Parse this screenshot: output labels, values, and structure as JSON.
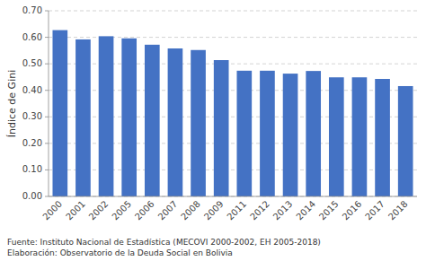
{
  "chart_data": {
    "type": "bar",
    "ylabel": "Índice de Gini",
    "categories": [
      "2000",
      "2001",
      "2002",
      "2005",
      "2006",
      "2007",
      "2008",
      "2009",
      "2011",
      "2012",
      "2013",
      "2014",
      "2015",
      "2016",
      "2017",
      "2018"
    ],
    "values": [
      0.627,
      0.592,
      0.604,
      0.596,
      0.572,
      0.558,
      0.552,
      0.514,
      0.474,
      0.474,
      0.463,
      0.473,
      0.449,
      0.449,
      0.443,
      0.416
    ],
    "color": "#4472C4",
    "ylim": [
      0.0,
      0.7
    ],
    "yticks": [
      {
        "value": 0.0,
        "label": "0.00"
      },
      {
        "value": 0.1,
        "label": "0.10"
      },
      {
        "value": 0.2,
        "label": "0.20"
      },
      {
        "value": 0.3,
        "label": "0.30"
      },
      {
        "value": 0.4,
        "label": "0.40"
      },
      {
        "value": 0.5,
        "label": "0.50"
      },
      {
        "value": 0.6,
        "label": "0.60"
      },
      {
        "value": 0.7,
        "label": "0.70"
      }
    ],
    "grid": true,
    "annotations": [
      "Fuente: Instituto Nacional de Estadística (MECOVI 2000-2002, EH 2005-2018)",
      "Elaboración: Observatorio de la Deuda Social en Bolivia"
    ]
  }
}
